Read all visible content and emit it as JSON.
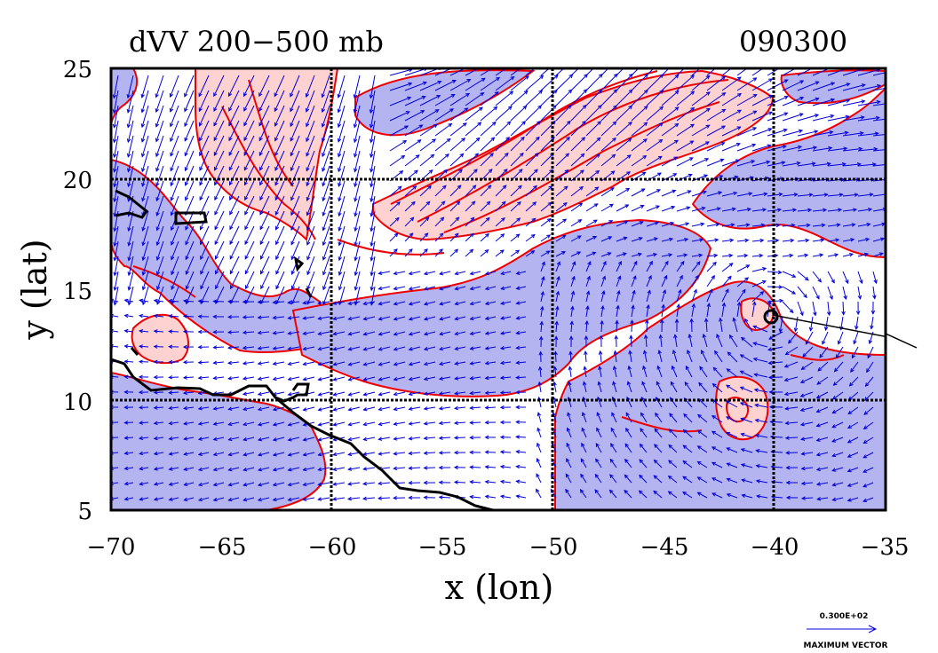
{
  "chart_data": {
    "type": "contour",
    "title": "dVV 200−500 mb",
    "time_label": "090300",
    "xlabel": "x (lon)",
    "ylabel": "y (lat)",
    "xlim": [
      -70,
      -35
    ],
    "ylim": [
      5,
      25
    ],
    "x_ticks": [
      "−70",
      "−65",
      "−60",
      "−55",
      "−50",
      "−45",
      "−40",
      "−35"
    ],
    "y_ticks": [
      "25",
      "20",
      "15",
      "10",
      "5"
    ],
    "grid_lon": [
      -60,
      -50,
      -40
    ],
    "grid_lat": [
      10,
      20
    ],
    "vector_legend": {
      "value": "0.300E+02",
      "label": "MAXIMUM VECTOR"
    },
    "colors": {
      "negative_fill": "#b4b4f0",
      "positive_fill": "#ffd2d2",
      "contour": "#ee0000",
      "vector": "#0000dd",
      "coast": "#000000"
    }
  }
}
